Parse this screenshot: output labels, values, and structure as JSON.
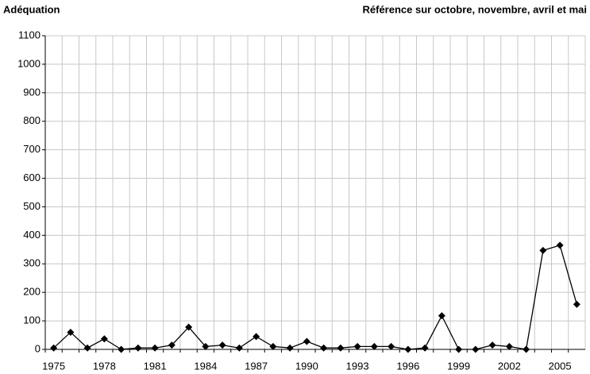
{
  "chart_data": {
    "type": "line",
    "title": "Adéquation",
    "subtitle": "Référence sur octobre, novembre, avril et mai",
    "categories": [
      "1975",
      null,
      null,
      "1978",
      null,
      null,
      "1981",
      null,
      null,
      "1984",
      null,
      null,
      "1987",
      null,
      null,
      "1990",
      null,
      null,
      "1993",
      null,
      null,
      "1996",
      null,
      null,
      "1999",
      null,
      null,
      "2002",
      null,
      null,
      "2005",
      null
    ],
    "values": [
      5,
      60,
      5,
      37,
      0,
      5,
      5,
      15,
      78,
      10,
      15,
      5,
      45,
      10,
      5,
      28,
      5,
      5,
      10,
      10,
      10,
      0,
      5,
      118,
      0,
      0,
      15,
      10,
      0,
      347,
      365,
      158
    ],
    "color": "#000000",
    "ylim": [
      0,
      1100
    ],
    "yticks": [
      0,
      100,
      200,
      300,
      400,
      500,
      600,
      700,
      800,
      900,
      1000,
      1100
    ],
    "grid": true
  }
}
